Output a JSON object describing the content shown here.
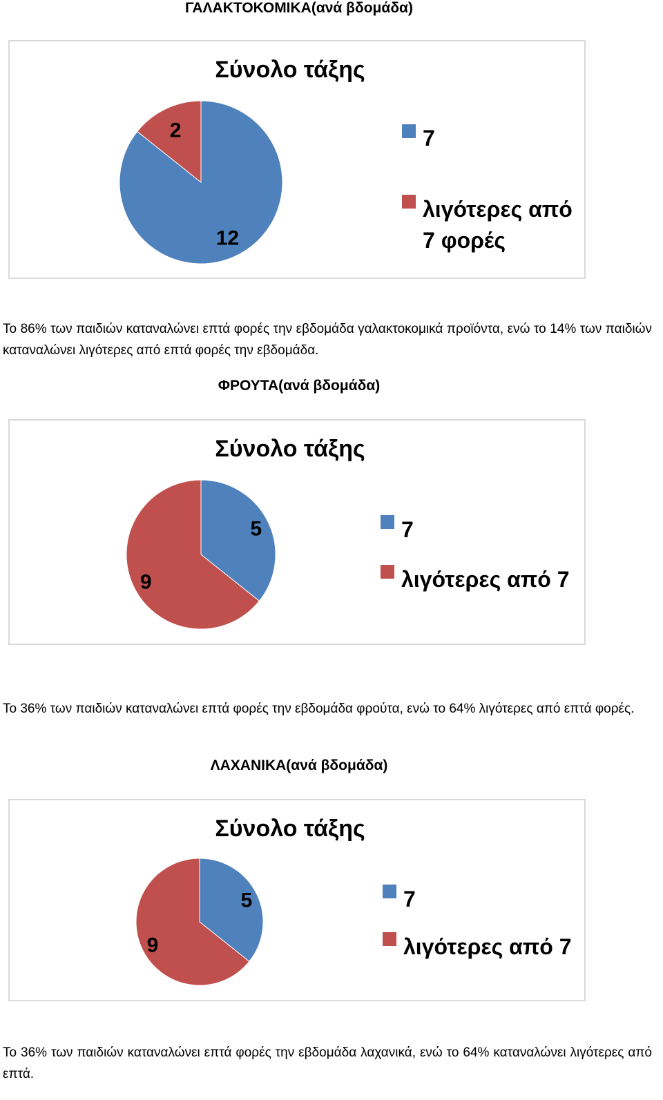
{
  "sections": [
    {
      "heading": "ΓΑΛΑΚΤΟΚΟΜΙΚΑ(ανά βδομάδα)",
      "paragraph": "Το 86% των παιδιών καταναλώνει επτά φορές την εβδομάδα γαλακτοκομικά προϊόντα, ενώ το 14% των παιδιών καταναλώνει λιγότερες από επτά φορές την εβδομάδα."
    },
    {
      "heading": "ΦΡΟΥΤΑ(ανά βδομάδα)",
      "paragraph": "Το 36% των παιδιών καταναλώνει επτά φορές την εβδομάδα φρούτα, ενώ το 64% λιγότερες από επτά φορές."
    },
    {
      "heading": "ΛΑΧΑΝΙΚΑ(ανά βδομάδα)",
      "paragraph": "Το 36% των παιδιών καταναλώνει επτά φορές την εβδομάδα λαχανικά, ενώ το 64% καταναλώνει λιγότερες από επτά."
    }
  ],
  "colors": {
    "blue": "#4f81bd",
    "red": "#c0504d"
  },
  "chart_data": [
    {
      "type": "pie",
      "title": "Σύνολο τάξης",
      "categories": [
        "7",
        "λιγότερες από 7 φορές"
      ],
      "values": [
        12,
        2
      ],
      "colors": [
        "#4f81bd",
        "#c0504d"
      ],
      "legend": "right"
    },
    {
      "type": "pie",
      "title": "Σύνολο τάξης",
      "categories": [
        "7",
        "λιγότερες από 7"
      ],
      "values": [
        5,
        9
      ],
      "colors": [
        "#4f81bd",
        "#c0504d"
      ],
      "legend": "right"
    },
    {
      "type": "pie",
      "title": "Σύνολο τάξης",
      "categories": [
        "7",
        "λιγότερες από 7"
      ],
      "values": [
        5,
        9
      ],
      "colors": [
        "#4f81bd",
        "#c0504d"
      ],
      "legend": "right"
    }
  ]
}
